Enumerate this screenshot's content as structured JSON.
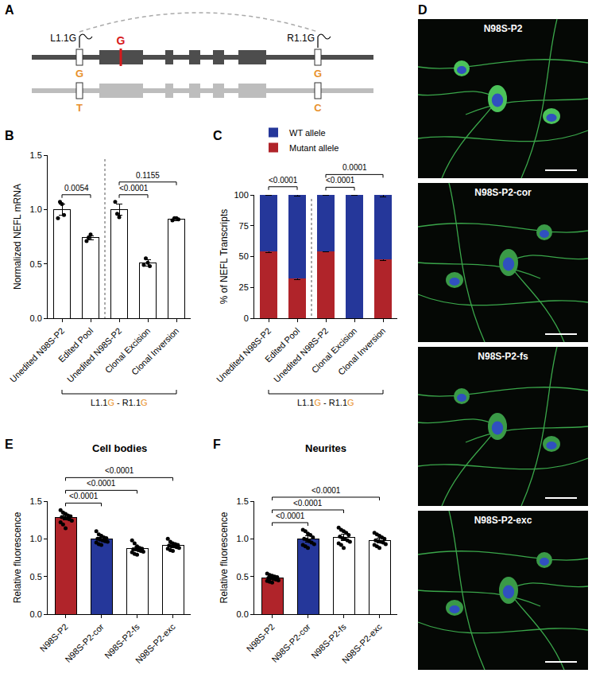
{
  "diagram": {
    "panel": "A",
    "left_guide": "L1.1G",
    "right_guide": "R1.1G",
    "variant": "G",
    "left_alleles": [
      "G",
      "T"
    ],
    "right_alleles": [
      "G",
      "C"
    ]
  },
  "chart_data": [
    {
      "panel": "B",
      "type": "bar",
      "y_label": "Normalized NEFL mRNA",
      "categories": [
        "Unedited N98S-P2",
        "Edited Pool",
        "Unedited N98S-P2",
        "Clonal Excision",
        "Clonal Inversion"
      ],
      "values": [
        1.0,
        0.74,
        1.0,
        0.51,
        0.91
      ],
      "errors": [
        0.05,
        0.02,
        0.05,
        0.03,
        0.01
      ],
      "points": [
        [
          0.92,
          1.07,
          1.05,
          0.95
        ],
        [
          0.71,
          0.74,
          0.77
        ],
        [
          1.07,
          0.96,
          0.93
        ],
        [
          0.49,
          0.55,
          0.51,
          0.48
        ],
        [
          0.9,
          0.92,
          0.92,
          0.91
        ]
      ],
      "color": "#ffffff",
      "ylim": [
        0,
        1.5
      ],
      "yticks": [
        {
          "value": 0,
          "label": "0.0"
        },
        {
          "value": 0.5,
          "label": "0.5"
        },
        {
          "value": 1,
          "label": "1.0"
        },
        {
          "value": 1.5,
          "label": "1.5"
        }
      ],
      "comparisons": [
        {
          "from": 0,
          "to": 1,
          "label": "0.0054"
        },
        {
          "from": 2,
          "to": 3,
          "label": "<0.0001"
        },
        {
          "from": 2,
          "to": 4,
          "label": "0.1155"
        }
      ],
      "groups": [
        [
          0,
          1
        ],
        [
          2,
          4
        ]
      ],
      "group_label": [
        {
          "text": "L1.1"
        },
        {
          "text": "G",
          "color": "#e8912d"
        },
        {
          "text": " - R1.1"
        },
        {
          "text": "G",
          "color": "#e8912d"
        }
      ]
    },
    {
      "panel": "C",
      "type": "bar",
      "stacked": true,
      "y_label": "% of NEFL Transcripts",
      "categories": [
        "Unedited N98S-P2",
        "Edited Pool",
        "Unedited N98S-P2",
        "Clonal Excision",
        "Clonal Inversion"
      ],
      "series": [
        {
          "name": "WT allele",
          "color": "#25379a",
          "values": [
            46,
            68,
            46,
            100,
            52
          ],
          "errors": [
            0.5,
            0.8,
            0.4,
            0.3,
            1.5
          ]
        },
        {
          "name": "Mutant allele",
          "color": "#b0242a",
          "values": [
            54,
            32,
            54,
            0,
            48
          ],
          "errors": [
            0.6,
            0.8,
            0.4,
            0,
            1.5
          ]
        }
      ],
      "legend": "top left",
      "ylim": [
        0,
        100
      ],
      "yticks": [
        0,
        25,
        50,
        75,
        100
      ],
      "comparisons": [
        {
          "from": 0,
          "to": 1,
          "label": "<0.0001"
        },
        {
          "from": 2,
          "to": 3,
          "label": "<0.0001"
        },
        {
          "from": 2,
          "to": 4,
          "label": "0.0001"
        }
      ],
      "groups": [
        [
          0,
          1
        ],
        [
          2,
          4
        ]
      ],
      "group_label": [
        {
          "text": "L1.1"
        },
        {
          "text": "G",
          "color": "#e8912d"
        },
        {
          "text": " - R1.1"
        },
        {
          "text": "G",
          "color": "#e8912d"
        }
      ]
    },
    {
      "panel": "E",
      "type": "bar",
      "title": "Cell bodies",
      "y_label": "Relative fluorescence",
      "categories": [
        "N98S-P2",
        "N98S-P2-cor",
        "N98S-P2-fs",
        "N98S-P2-exc"
      ],
      "values": [
        1.28,
        1.0,
        0.87,
        0.91
      ],
      "errors": [
        0.03,
        0.02,
        0.02,
        0.02
      ],
      "colors": [
        "#b0242a",
        "#25379a",
        "#ffffff",
        "#ffffff"
      ],
      "points": [
        [
          1.38,
          1.35,
          1.33,
          1.31,
          1.3,
          1.29,
          1.28,
          1.27,
          1.26,
          1.24,
          1.22,
          1.19,
          1.14
        ],
        [
          1.1,
          1.06,
          1.04,
          1.02,
          1.01,
          1.0,
          0.99,
          0.98,
          0.97,
          0.96,
          0.95,
          0.93,
          0.92
        ],
        [
          0.98,
          0.94,
          0.9,
          0.88,
          0.87,
          0.86,
          0.86,
          0.85,
          0.84,
          0.83,
          0.82,
          0.8,
          0.79
        ],
        [
          1.0,
          0.96,
          0.94,
          0.93,
          0.92,
          0.91,
          0.9,
          0.9,
          0.89,
          0.88,
          0.87,
          0.85,
          0.84
        ]
      ],
      "ylim": [
        0,
        1.5
      ],
      "yticks": [
        {
          "value": 0,
          "label": "0.0"
        },
        {
          "value": 0.5,
          "label": "0.5"
        },
        {
          "value": 1,
          "label": "1.0"
        },
        {
          "value": 1.5,
          "label": "1.5"
        }
      ],
      "comparisons": [
        {
          "from": 0,
          "to": 1,
          "label": "<0.0001"
        },
        {
          "from": 0,
          "to": 2,
          "label": "<0.0001"
        },
        {
          "from": 0,
          "to": 3,
          "label": "<0.0001"
        }
      ]
    },
    {
      "panel": "F",
      "type": "bar",
      "title": "Neurites",
      "y_label": "Relative fluorescence",
      "categories": [
        "N98S-P2",
        "N98S-P2-cor",
        "N98S-P2-fs",
        "N98S-P2-exc"
      ],
      "values": [
        0.48,
        1.0,
        1.02,
        0.98
      ],
      "errors": [
        0.02,
        0.04,
        0.04,
        0.03
      ],
      "colors": [
        "#b0242a",
        "#25379a",
        "#ffffff",
        "#ffffff"
      ],
      "points": [
        [
          0.54,
          0.52,
          0.51,
          0.5,
          0.49,
          0.48,
          0.48,
          0.47,
          0.46,
          0.45,
          0.44,
          0.43,
          0.42
        ],
        [
          1.12,
          1.1,
          1.07,
          1.05,
          1.02,
          1.0,
          0.99,
          0.97,
          0.95,
          0.93,
          0.92,
          0.9,
          0.88
        ],
        [
          1.15,
          1.12,
          1.1,
          1.08,
          1.05,
          1.03,
          1.01,
          1.0,
          0.98,
          0.96,
          0.94,
          0.92,
          0.88
        ],
        [
          1.08,
          1.06,
          1.04,
          1.02,
          1.0,
          0.98,
          0.97,
          0.96,
          0.95,
          0.93,
          0.92,
          0.9,
          0.88
        ]
      ],
      "ylim": [
        0,
        1.5
      ],
      "yticks": [
        {
          "value": 0,
          "label": "0.0"
        },
        {
          "value": 0.5,
          "label": "0.5"
        },
        {
          "value": 1,
          "label": "1.0"
        },
        {
          "value": 1.5,
          "label": "1.5"
        }
      ],
      "comparisons": [
        {
          "from": 0,
          "to": 1,
          "label": "<0.0001"
        },
        {
          "from": 0,
          "to": 2,
          "label": "<0.0001"
        },
        {
          "from": 0,
          "to": 3,
          "label": "<0.0001"
        }
      ]
    }
  ],
  "micrographs": {
    "panel": "D",
    "labels": [
      "N98S-P2",
      "N98S-P2-cor",
      "N98S-P2-fs",
      "N98S-P2-exc"
    ]
  }
}
